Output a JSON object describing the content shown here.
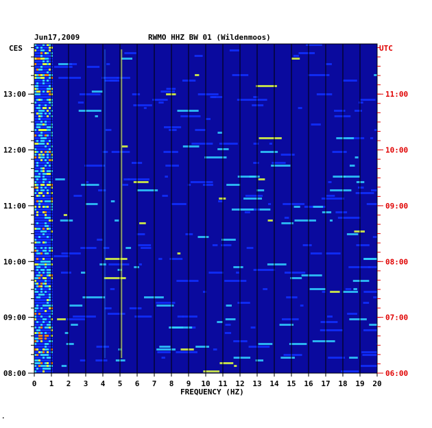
{
  "header": {
    "date": "Jun17,2009",
    "station": "RWMO HHZ BW 01 (Wildenmoos)",
    "left_zone": "CES",
    "right_zone": "UTC"
  },
  "footer": {
    "mark": "."
  },
  "colors": {
    "background": "#0a0a9e",
    "grid": "#000000",
    "left_axis": "#000000",
    "right_axis": "#e00000"
  },
  "chart_data": {
    "type": "heatmap",
    "title": "RWMO HHZ BW 01 (Wildenmoos)",
    "xlabel": "FREQUENCY (HZ)",
    "x_ticks": [
      "0",
      "1",
      "2",
      "3",
      "4",
      "5",
      "6",
      "7",
      "8",
      "9",
      "10",
      "11",
      "12",
      "13",
      "14",
      "15",
      "16",
      "17",
      "18",
      "19",
      "20"
    ],
    "xlim": [
      0,
      20
    ],
    "y_ticks_left": [
      "13:00",
      "12:00",
      "11:00",
      "10:00",
      "09:00",
      "08:00"
    ],
    "y_ticks_right": [
      "11:00",
      "10:00",
      "09:00",
      "08:00",
      "07:00",
      "06:00"
    ],
    "y_tick_hours": [
      13,
      12,
      11,
      10,
      9,
      8
    ],
    "ylim_hours": [
      8.0,
      13.9
    ],
    "grid": true,
    "colormap": [
      "#0a0a9e",
      "#1030ff",
      "#30d0ff",
      "#e0ff40",
      "#ff8000",
      "#c00000"
    ]
  }
}
